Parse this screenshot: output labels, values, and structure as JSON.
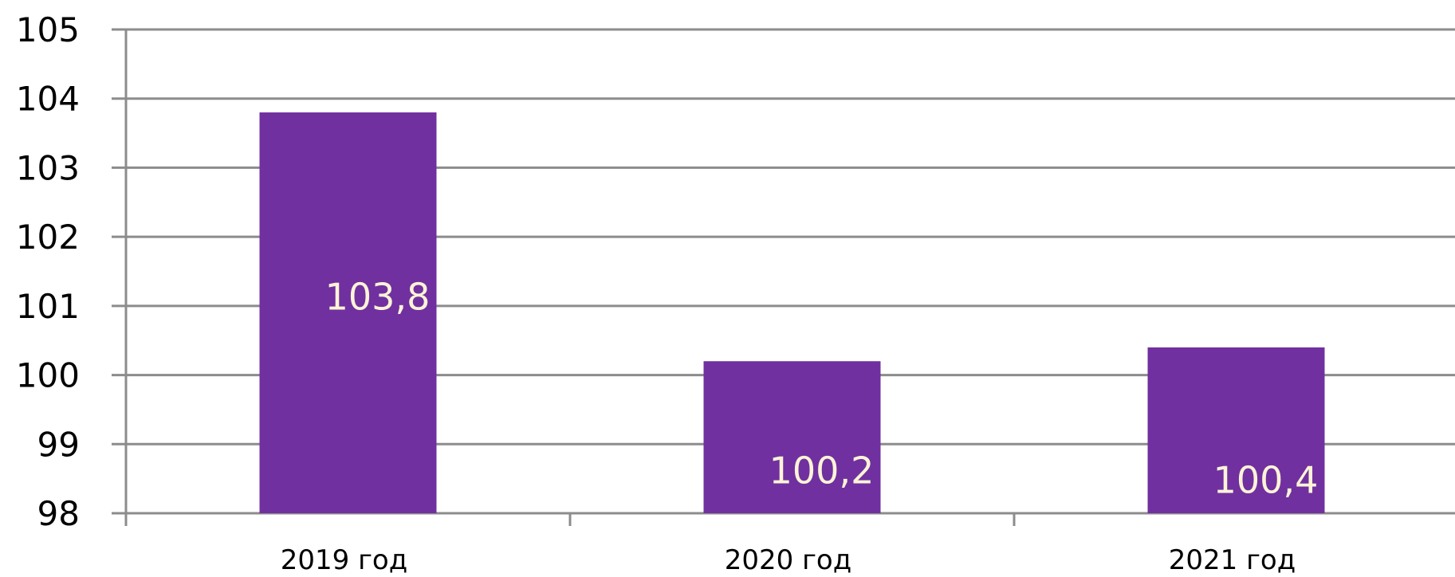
{
  "chart_data": {
    "type": "bar",
    "categories": [
      "2019 год",
      "2020 год",
      "2021 год"
    ],
    "values": [
      103.8,
      100.2,
      100.4
    ],
    "data_labels": [
      "103,8",
      "100,2",
      "100,4"
    ],
    "title": "",
    "xlabel": "",
    "ylabel": "",
    "ylim": [
      98,
      105
    ],
    "y_ticks": [
      98,
      99,
      100,
      101,
      102,
      103,
      104,
      105
    ],
    "y_tick_labels": [
      "98",
      "99",
      "100",
      "101",
      "102",
      "103",
      "104",
      "105"
    ],
    "grid": true,
    "legend": "none",
    "colors": {
      "bar": "#7030A0",
      "grid": "#8c8c8c",
      "axis": "#8c8c8c",
      "data_label": "#fff4d6",
      "tick_label": "#000000"
    }
  }
}
